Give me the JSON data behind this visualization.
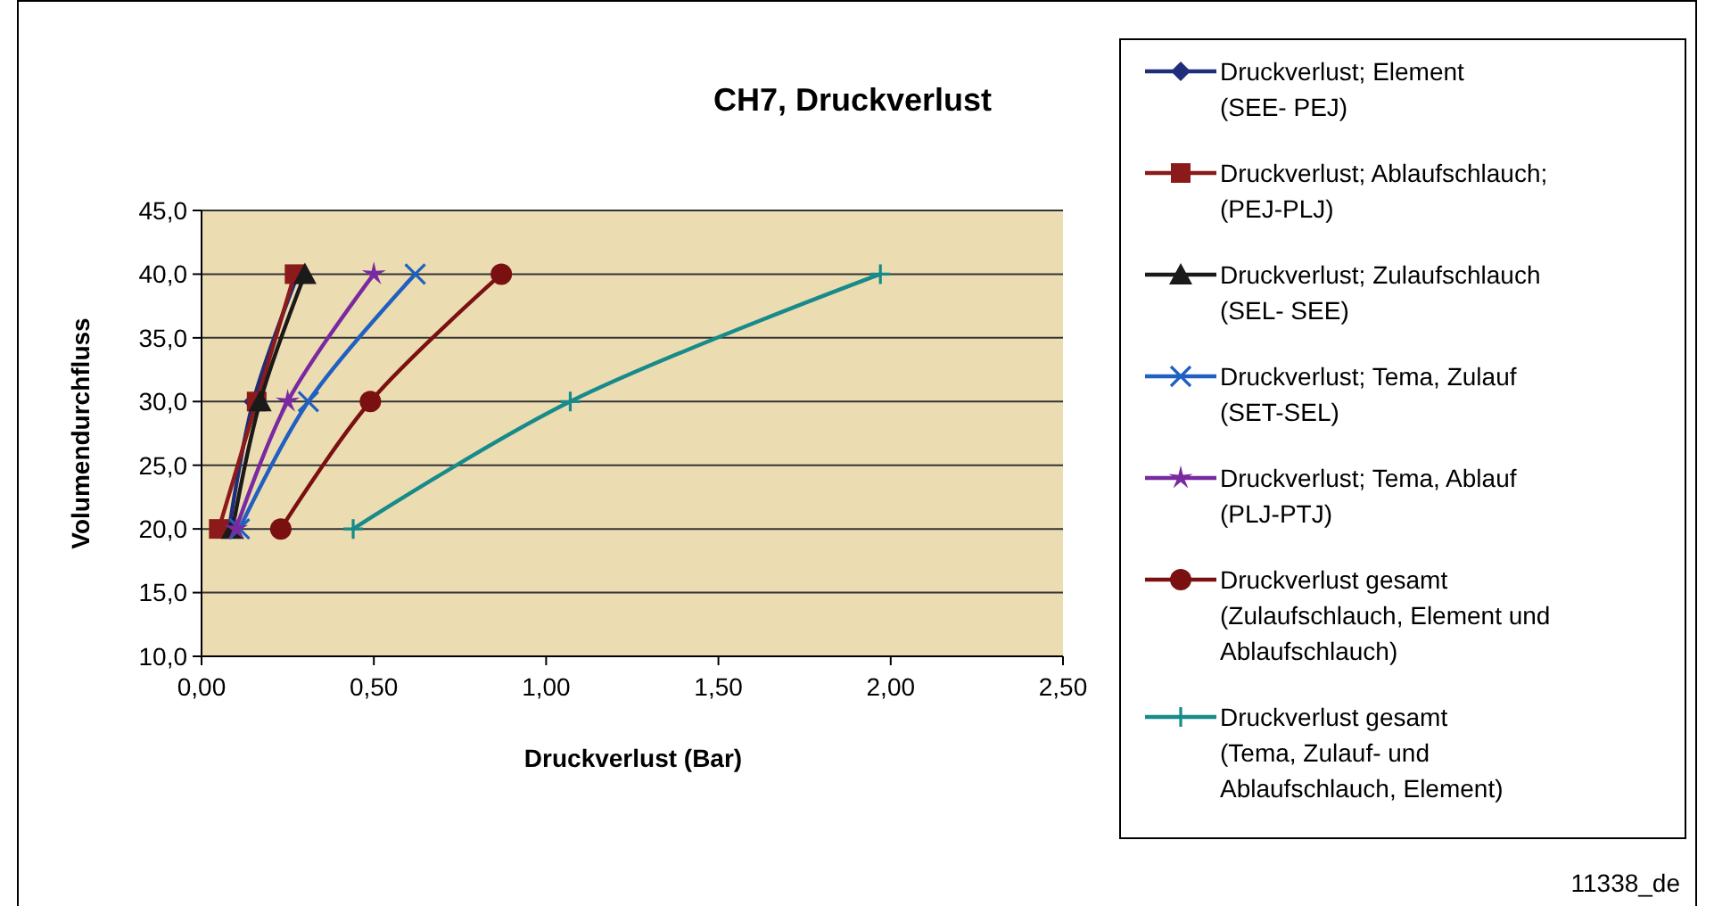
{
  "chart_data": {
    "type": "line",
    "title": "CH7, Druckverlust",
    "xlabel": "Druckverlust (Bar)",
    "ylabel": "Volumendurchfluss",
    "xlim": [
      0,
      2.5
    ],
    "xticks": [
      {
        "value": 0,
        "label": "0,00"
      },
      {
        "value": 0.5,
        "label": "0,50"
      },
      {
        "value": 1,
        "label": "1,00"
      },
      {
        "value": 1.5,
        "label": "1,50"
      },
      {
        "value": 2,
        "label": "2,00"
      },
      {
        "value": 2.5,
        "label": "2,50"
      }
    ],
    "ylim": [
      10,
      45
    ],
    "yticks": [
      {
        "value": 10,
        "label": "10,0"
      },
      {
        "value": 15,
        "label": "15,0"
      },
      {
        "value": 20,
        "label": "20,0"
      },
      {
        "value": 25,
        "label": "25,0"
      },
      {
        "value": 30,
        "label": "30,0"
      },
      {
        "value": 35,
        "label": "35,0"
      },
      {
        "value": 40,
        "label": "40,0"
      },
      {
        "value": 45,
        "label": "45,0"
      }
    ],
    "grid": "y",
    "legend": "right",
    "line_style": "solid",
    "series": [
      {
        "name": "Druckverlust; Element (SEE- PEJ)",
        "color": "#1f2d7a",
        "marker": "diamond",
        "x": [
          0.08,
          0.15,
          0.28
        ],
        "values": [
          20,
          30,
          40
        ]
      },
      {
        "name": "Druckverlust; Ablaufschlauch; (PEJ-PLJ)",
        "color": "#8b1a1a",
        "marker": "square",
        "x": [
          0.05,
          0.16,
          0.27
        ],
        "values": [
          20,
          30,
          40
        ]
      },
      {
        "name": "Druckverlust; Zulaufschlauch (SEL- SEE)",
        "color": "#1a1a1a",
        "marker": "triangle",
        "x": [
          0.09,
          0.17,
          0.3
        ],
        "values": [
          20,
          30,
          40
        ]
      },
      {
        "name": "Druckverlust; Tema, Zulauf (SET-SEL)",
        "color": "#2060c0",
        "marker": "cross",
        "x": [
          0.11,
          0.31,
          0.62
        ],
        "values": [
          20,
          30,
          40
        ]
      },
      {
        "name": "Druckverlust; Tema, Ablauf (PLJ-PTJ)",
        "color": "#7a2aa0",
        "marker": "star",
        "x": [
          0.1,
          0.25,
          0.5
        ],
        "values": [
          20,
          30,
          40
        ]
      },
      {
        "name": "Druckverlust gesamt (Zulaufschlauch, Element und Ablaufschlauch)",
        "color": "#7a1010",
        "marker": "circle",
        "x": [
          0.23,
          0.49,
          0.87
        ],
        "values": [
          20,
          30,
          40
        ]
      },
      {
        "name": "Druckverlust gesamt (Tema, Zulauf- und Ablaufschlauch, Element)",
        "color": "#178a8a",
        "marker": "plus",
        "x": [
          0.44,
          1.07,
          1.97
        ],
        "values": [
          20,
          30,
          40
        ]
      }
    ],
    "annotations": [
      "11338_de"
    ]
  }
}
